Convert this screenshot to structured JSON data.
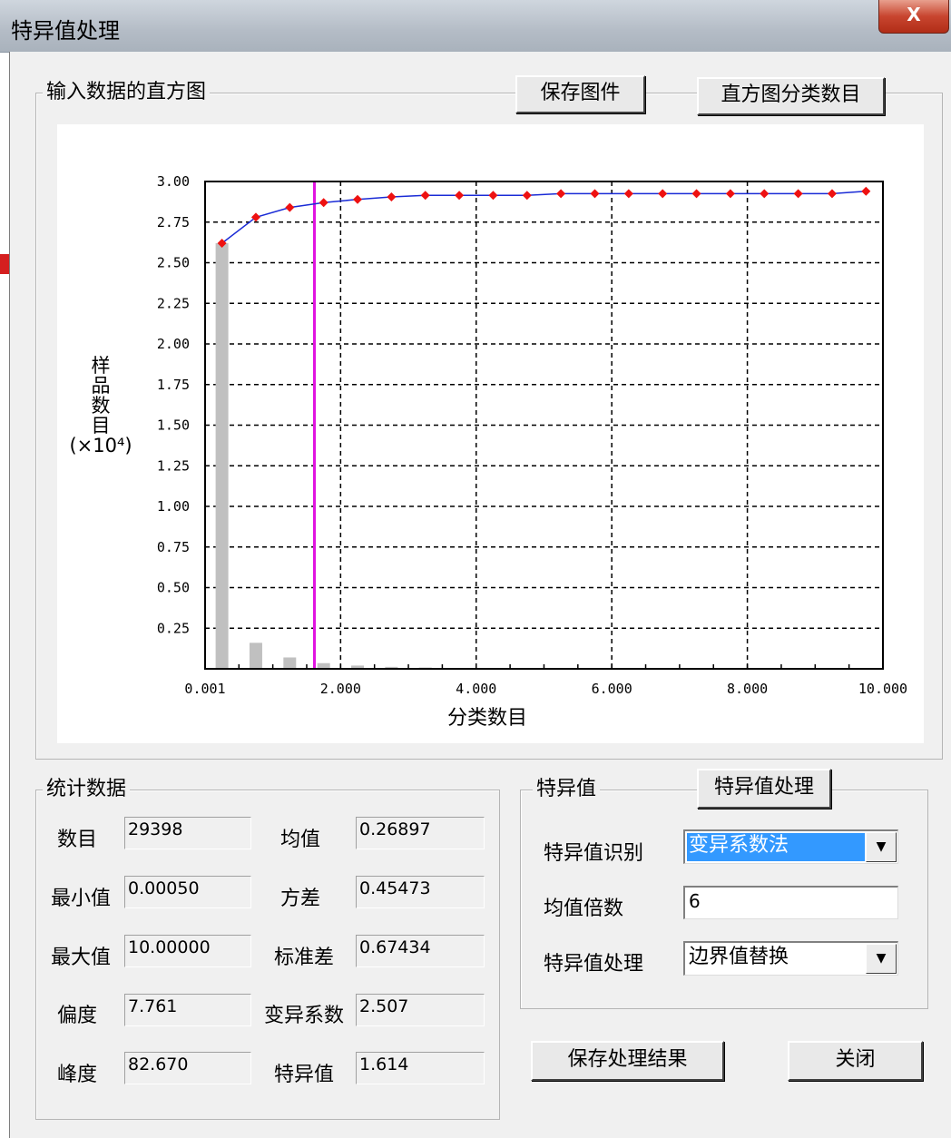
{
  "window": {
    "title": "特异值处理",
    "close_label": "X"
  },
  "histogram": {
    "group_title": "输入数据的直方图",
    "save_button": "保存图件",
    "bins_button": "直方图分类数目"
  },
  "chart_data": {
    "type": "bar",
    "xlabel": "分类数目",
    "ylabel_lines": [
      "样",
      "品",
      "数",
      "目",
      "(×10⁴)"
    ],
    "x_ticks": [
      "0.001",
      "2.000",
      "4.000",
      "6.000",
      "8.000",
      "10.000"
    ],
    "y_ticks": [
      "0.25",
      "0.50",
      "0.75",
      "1.00",
      "1.25",
      "1.50",
      "1.75",
      "2.00",
      "2.25",
      "2.50",
      "2.75",
      "3.00"
    ],
    "xlim": [
      0.001,
      10.0
    ],
    "ylim": [
      0,
      3.0
    ],
    "grid": true,
    "marker_line_x": 1.614,
    "bars": {
      "x": [
        0.25,
        0.75,
        1.25,
        1.75,
        2.25,
        2.75,
        3.25
      ],
      "values": [
        2.62,
        0.16,
        0.07,
        0.035,
        0.02,
        0.012,
        0.008
      ]
    },
    "cumulative": {
      "x": [
        0.25,
        0.75,
        1.25,
        1.75,
        2.25,
        2.75,
        3.25,
        3.75,
        4.25,
        4.75,
        5.25,
        5.75,
        6.25,
        6.75,
        7.25,
        7.75,
        8.25,
        8.75,
        9.25,
        9.75
      ],
      "values": [
        2.62,
        2.78,
        2.84,
        2.87,
        2.89,
        2.905,
        2.915,
        2.915,
        2.915,
        2.915,
        2.925,
        2.925,
        2.925,
        2.925,
        2.925,
        2.925,
        2.925,
        2.925,
        2.925,
        2.94
      ]
    },
    "colors": {
      "bars": "#c0c0c0",
      "line": "#1a2bd6",
      "points": "#ee1111",
      "marker": "#e014e0",
      "grid": "#000000"
    }
  },
  "stats": {
    "group_title": "统计数据",
    "count_label": "数目",
    "count": "29398",
    "min_label": "最小值",
    "min": "0.00050",
    "max_label": "最大值",
    "max": "10.00000",
    "skew_label": "偏度",
    "skew": "7.761",
    "kurt_label": "峰度",
    "kurt": "82.670",
    "mean_label": "均值",
    "mean": "0.26897",
    "var_label": "方差",
    "var": "0.45473",
    "std_label": "标准差",
    "std": "0.67434",
    "cv_label": "变异系数",
    "cv": "2.507",
    "outlier_label": "特异值",
    "outlier": "1.614"
  },
  "outliers": {
    "group_title": "特异值",
    "process_button": "特异值处理",
    "identify_label": "特异值识别",
    "identify_value": "变异系数法",
    "multiple_label": "均值倍数",
    "multiple_value": "6",
    "handling_label": "特异值处理",
    "handling_value": "边界值替换"
  },
  "footer": {
    "save_result": "保存处理结果",
    "close": "关闭"
  }
}
